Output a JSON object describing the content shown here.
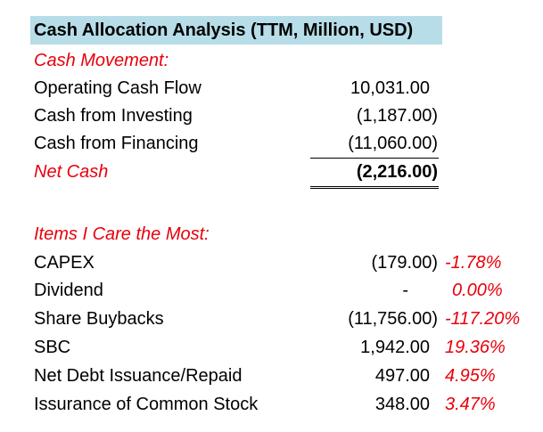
{
  "colors": {
    "title_background": "#b7dde8",
    "accent_red": "#e8000b",
    "text": "#000000"
  },
  "title": "Cash Allocation Analysis (TTM, Million, USD)",
  "cash_movement": {
    "heading": "Cash Movement:",
    "rows": [
      {
        "label": "Operating Cash Flow",
        "value": "10,031.00"
      },
      {
        "label": "Cash from Investing",
        "value": "(1,187.00)"
      },
      {
        "label": "Cash from Financing",
        "value": "(11,060.00)"
      }
    ],
    "net": {
      "label": "Net Cash",
      "value": "(2,216.00)"
    }
  },
  "items": {
    "heading": "Items I Care the Most:",
    "rows": [
      {
        "label": "CAPEX",
        "value": "(179.00)",
        "pct": "-1.78%"
      },
      {
        "label": "Dividend",
        "value": "-",
        "pct": "0.00%"
      },
      {
        "label": "Share Buybacks",
        "value": "(11,756.00)",
        "pct": "-117.20%"
      },
      {
        "label": "SBC",
        "value": "1,942.00",
        "pct": "19.36%"
      },
      {
        "label": "Net Debt Issuance/Repaid",
        "value": "497.00",
        "pct": "4.95%"
      },
      {
        "label": "Issurance of Common Stock",
        "value": "348.00",
        "pct": "3.47%"
      }
    ]
  }
}
